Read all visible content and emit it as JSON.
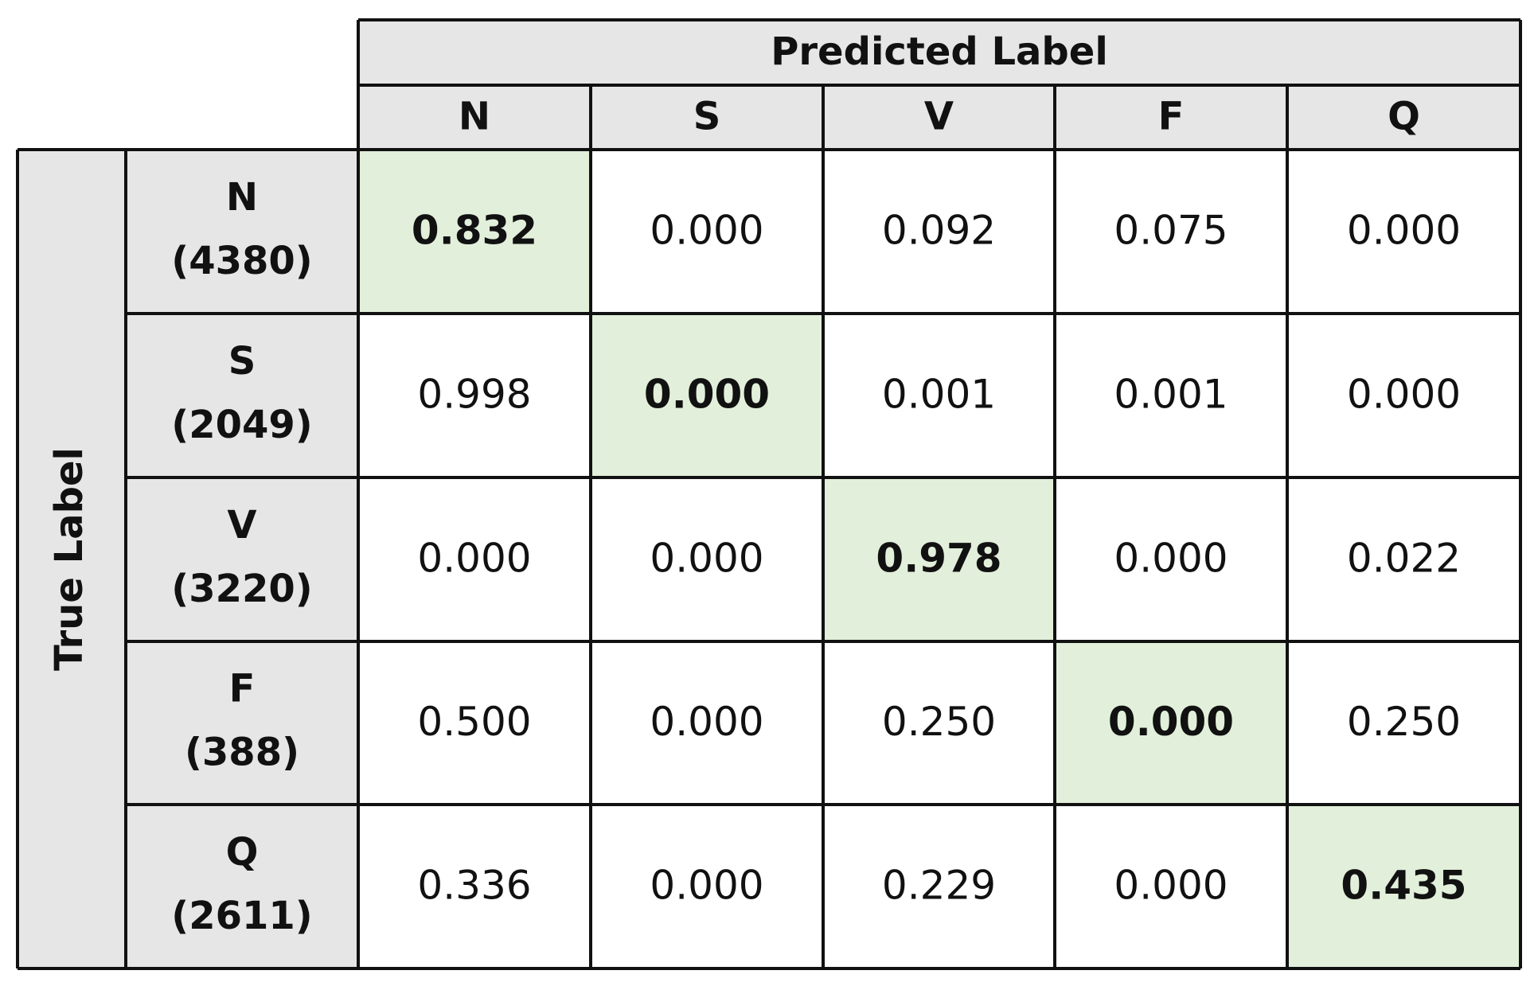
{
  "header": {
    "title": "Predicted Label",
    "columns": [
      "N",
      "S",
      "V",
      "F",
      "Q"
    ]
  },
  "side": {
    "title": "True Label"
  },
  "rows": [
    {
      "label": "N",
      "count": "(4380)",
      "cells": [
        "0.832",
        "0.000",
        "0.092",
        "0.075",
        "0.000"
      ]
    },
    {
      "label": "S",
      "count": "(2049)",
      "cells": [
        "0.998",
        "0.000",
        "0.001",
        "0.001",
        "0.000"
      ]
    },
    {
      "label": "V",
      "count": "(3220)",
      "cells": [
        "0.000",
        "0.000",
        "0.978",
        "0.000",
        "0.022"
      ]
    },
    {
      "label": "F",
      "count": "(388)",
      "cells": [
        "0.500",
        "0.000",
        "0.250",
        "0.000",
        "0.250"
      ]
    },
    {
      "label": "Q",
      "count": "(2611)",
      "cells": [
        "0.336",
        "0.000",
        "0.229",
        "0.000",
        "0.435"
      ]
    }
  ]
}
